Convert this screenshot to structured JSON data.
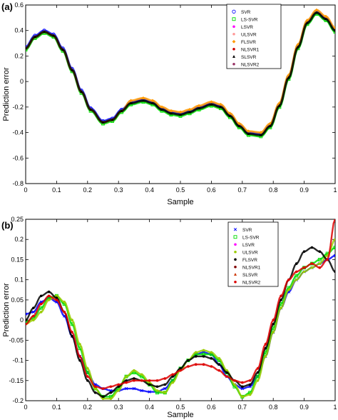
{
  "chart_data": [
    {
      "panel_label": "(a)",
      "type": "scatter",
      "xlabel": "Sample",
      "ylabel": "Prediction error",
      "xlim": [
        0,
        1
      ],
      "ylim": [
        -0.8,
        0.6
      ],
      "xticks": [
        "0",
        "0.1",
        "0.2",
        "0.3",
        "0.4",
        "0.5",
        "0.6",
        "0.7",
        "0.8",
        "0.9",
        "1"
      ],
      "yticks": [
        "-0.8",
        "-0.6",
        "-0.4",
        "-0.2",
        "0",
        "0.2",
        "0.4",
        "0.6"
      ],
      "grid": false,
      "legend_position": "top-right",
      "legend": [
        {
          "name": "SVR",
          "color": "#0000ff",
          "marker": "circle"
        },
        {
          "name": "LS-SVR",
          "color": "#00dd00",
          "marker": "square"
        },
        {
          "name": "LSVR",
          "color": "#ff00ff",
          "marker": "point"
        },
        {
          "name": "ULSVR",
          "color": "#ff9999",
          "marker": "point"
        },
        {
          "name": "FLSVR",
          "color": "#ff9900",
          "marker": "diamond"
        },
        {
          "name": "NLSVR1",
          "color": "#cc0000",
          "marker": "point"
        },
        {
          "name": "SLSVR",
          "color": "#000000",
          "marker": "triangle"
        },
        {
          "name": "NLSVR2",
          "color": "#993366",
          "marker": "point"
        }
      ],
      "x": [
        0,
        0.03,
        0.06,
        0.09,
        0.12,
        0.15,
        0.18,
        0.21,
        0.25,
        0.28,
        0.31,
        0.34,
        0.38,
        0.41,
        0.44,
        0.47,
        0.5,
        0.53,
        0.56,
        0.6,
        0.63,
        0.66,
        0.69,
        0.72,
        0.76,
        0.79,
        0.82,
        0.85,
        0.88,
        0.91,
        0.94,
        0.97,
        1.0
      ],
      "series": [
        {
          "name": "SVR",
          "color": "#0000ff",
          "values": [
            0.27,
            0.36,
            0.4,
            0.37,
            0.26,
            0.1,
            -0.07,
            -0.21,
            -0.31,
            -0.29,
            -0.22,
            -0.16,
            -0.14,
            -0.16,
            -0.21,
            -0.24,
            -0.25,
            -0.23,
            -0.2,
            -0.17,
            -0.19,
            -0.26,
            -0.34,
            -0.4,
            -0.41,
            -0.34,
            -0.18,
            0.04,
            0.28,
            0.47,
            0.55,
            0.5,
            0.41
          ]
        },
        {
          "name": "LS-SVR",
          "color": "#00dd00",
          "values": [
            0.25,
            0.34,
            0.38,
            0.35,
            0.24,
            0.08,
            -0.09,
            -0.23,
            -0.33,
            -0.31,
            -0.24,
            -0.18,
            -0.16,
            -0.18,
            -0.23,
            -0.26,
            -0.27,
            -0.25,
            -0.22,
            -0.19,
            -0.21,
            -0.28,
            -0.36,
            -0.42,
            -0.43,
            -0.36,
            -0.2,
            0.02,
            0.26,
            0.45,
            0.53,
            0.48,
            0.39
          ]
        },
        {
          "name": "FLSVR",
          "color": "#ff9900",
          "values": [
            0.26,
            0.35,
            0.39,
            0.36,
            0.25,
            0.09,
            -0.08,
            -0.22,
            -0.32,
            -0.3,
            -0.23,
            -0.15,
            -0.13,
            -0.15,
            -0.2,
            -0.23,
            -0.24,
            -0.22,
            -0.19,
            -0.16,
            -0.18,
            -0.25,
            -0.33,
            -0.39,
            -0.4,
            -0.33,
            -0.17,
            0.05,
            0.29,
            0.48,
            0.56,
            0.51,
            0.42
          ]
        },
        {
          "name": "SLSVR",
          "color": "#000000",
          "values": [
            0.26,
            0.35,
            0.39,
            0.36,
            0.25,
            0.09,
            -0.08,
            -0.22,
            -0.32,
            -0.3,
            -0.23,
            -0.17,
            -0.15,
            -0.17,
            -0.22,
            -0.25,
            -0.26,
            -0.24,
            -0.21,
            -0.18,
            -0.2,
            -0.27,
            -0.35,
            -0.41,
            -0.42,
            -0.35,
            -0.19,
            0.03,
            0.27,
            0.46,
            0.54,
            0.49,
            0.4
          ]
        }
      ]
    },
    {
      "panel_label": "(b)",
      "type": "scatter",
      "xlabel": "Sample",
      "ylabel": "Prediction error",
      "xlim": [
        0,
        1
      ],
      "ylim": [
        -0.2,
        0.25
      ],
      "xticks": [
        "0",
        "0.1",
        "0.2",
        "0.3",
        "0.4",
        "0.5",
        "0.6",
        "0.7",
        "0.8",
        "0.9",
        "1"
      ],
      "yticks": [
        "-0.2",
        "-0.15",
        "-0.1",
        "-0.05",
        "0",
        "0.05",
        "0.1",
        "0.15",
        "0.2",
        "0.25"
      ],
      "grid": false,
      "legend_position": "top-right",
      "legend": [
        {
          "name": "SVR",
          "color": "#0000ff",
          "marker": "x"
        },
        {
          "name": "LS-SVR",
          "color": "#00dd00",
          "marker": "square"
        },
        {
          "name": "LSVR",
          "color": "#ff00ff",
          "marker": "point"
        },
        {
          "name": "ULSVR",
          "color": "#99cc00",
          "marker": "point"
        },
        {
          "name": "FLSVR",
          "color": "#000000",
          "marker": "point"
        },
        {
          "name": "NLSVR1",
          "color": "#800000",
          "marker": "point"
        },
        {
          "name": "SLSVR",
          "color": "#cc3300",
          "marker": "triangle"
        },
        {
          "name": "NLSVR2",
          "color": "#dd0000",
          "marker": "point"
        }
      ],
      "x": [
        0,
        0.025,
        0.05,
        0.075,
        0.1,
        0.125,
        0.15,
        0.175,
        0.2,
        0.225,
        0.25,
        0.275,
        0.3,
        0.325,
        0.35,
        0.375,
        0.4,
        0.425,
        0.45,
        0.475,
        0.5,
        0.525,
        0.55,
        0.575,
        0.6,
        0.625,
        0.65,
        0.675,
        0.7,
        0.725,
        0.75,
        0.775,
        0.8,
        0.825,
        0.85,
        0.875,
        0.9,
        0.925,
        0.95,
        0.975,
        1.0
      ],
      "series": [
        {
          "name": "SVR",
          "color": "#0000ff",
          "values": [
            0.015,
            0.02,
            0.045,
            0.055,
            0.045,
            0.01,
            -0.04,
            -0.09,
            -0.13,
            -0.16,
            -0.17,
            -0.175,
            -0.175,
            -0.17,
            -0.17,
            -0.175,
            -0.178,
            -0.178,
            -0.17,
            -0.15,
            -0.12,
            -0.1,
            -0.085,
            -0.08,
            -0.085,
            -0.11,
            -0.14,
            -0.16,
            -0.17,
            -0.165,
            -0.14,
            -0.09,
            -0.03,
            0.03,
            0.07,
            0.1,
            0.12,
            0.13,
            0.14,
            0.15,
            0.16
          ]
        },
        {
          "name": "LS-SVR",
          "color": "#00dd00",
          "values": [
            -0.005,
            0.005,
            0.03,
            0.055,
            0.06,
            0.04,
            -0.01,
            -0.07,
            -0.13,
            -0.17,
            -0.19,
            -0.19,
            -0.17,
            -0.14,
            -0.13,
            -0.14,
            -0.16,
            -0.18,
            -0.18,
            -0.15,
            -0.12,
            -0.1,
            -0.085,
            -0.085,
            -0.085,
            -0.1,
            -0.13,
            -0.165,
            -0.19,
            -0.18,
            -0.14,
            -0.08,
            -0.02,
            0.04,
            0.08,
            0.11,
            0.13,
            0.14,
            0.15,
            0.165,
            0.18
          ]
        },
        {
          "name": "ULSVR",
          "color": "#99cc00",
          "values": [
            -0.01,
            0.0,
            0.02,
            0.05,
            0.06,
            0.045,
            0.0,
            -0.06,
            -0.12,
            -0.17,
            -0.195,
            -0.195,
            -0.175,
            -0.14,
            -0.125,
            -0.135,
            -0.155,
            -0.175,
            -0.18,
            -0.155,
            -0.125,
            -0.1,
            -0.08,
            -0.075,
            -0.08,
            -0.095,
            -0.125,
            -0.16,
            -0.19,
            -0.185,
            -0.15,
            -0.09,
            -0.03,
            0.03,
            0.075,
            0.1,
            0.12,
            0.13,
            0.14,
            0.16,
            0.2
          ]
        },
        {
          "name": "FLSVR",
          "color": "#000000",
          "values": [
            0.0,
            0.03,
            0.06,
            0.07,
            0.055,
            0.02,
            -0.04,
            -0.1,
            -0.15,
            -0.18,
            -0.19,
            -0.18,
            -0.165,
            -0.15,
            -0.145,
            -0.15,
            -0.16,
            -0.165,
            -0.16,
            -0.14,
            -0.12,
            -0.1,
            -0.09,
            -0.09,
            -0.095,
            -0.11,
            -0.13,
            -0.15,
            -0.165,
            -0.16,
            -0.13,
            -0.07,
            -0.01,
            0.05,
            0.1,
            0.14,
            0.17,
            0.18,
            0.17,
            0.15,
            0.12
          ]
        },
        {
          "name": "NLSVR2",
          "color": "#dd0000",
          "values": [
            -0.01,
            0.01,
            0.04,
            0.06,
            0.05,
            0.02,
            -0.03,
            -0.09,
            -0.14,
            -0.165,
            -0.17,
            -0.165,
            -0.16,
            -0.155,
            -0.15,
            -0.15,
            -0.15,
            -0.15,
            -0.145,
            -0.135,
            -0.125,
            -0.115,
            -0.11,
            -0.11,
            -0.115,
            -0.125,
            -0.14,
            -0.15,
            -0.155,
            -0.15,
            -0.12,
            -0.06,
            0.0,
            0.06,
            0.1,
            0.12,
            0.13,
            0.14,
            0.13,
            0.15,
            0.25
          ]
        }
      ]
    }
  ]
}
